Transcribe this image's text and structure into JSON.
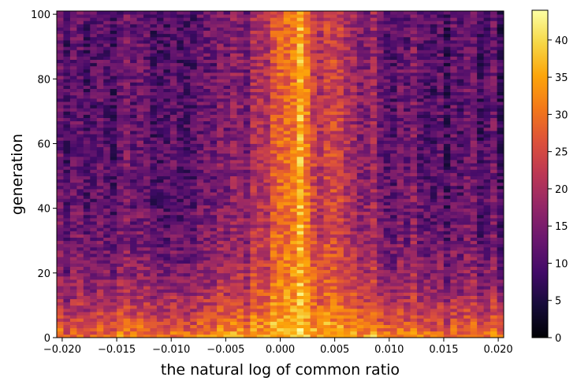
{
  "chart_data": {
    "type": "heatmap",
    "title": "",
    "xlabel": "the natural log of common ratio",
    "ylabel": "generation",
    "xlim": [
      -0.0205,
      0.0205
    ],
    "ylim": [
      0,
      101
    ],
    "x_ticks": [
      "−0.020",
      "−0.015",
      "−0.010",
      "−0.005",
      "0.000",
      "0.005",
      "0.010",
      "0.015",
      "0.020"
    ],
    "x_tick_values": [
      -0.02,
      -0.015,
      -0.01,
      -0.005,
      0.0,
      0.005,
      0.01,
      0.015,
      0.02
    ],
    "y_ticks": [
      "0",
      "20",
      "40",
      "60",
      "80",
      "100"
    ],
    "y_tick_values": [
      0,
      20,
      40,
      60,
      80,
      100
    ],
    "colormap": "inferno",
    "colorbar": {
      "range": [
        0,
        44
      ],
      "ticks": [
        "0",
        "5",
        "10",
        "15",
        "20",
        "25",
        "30",
        "35",
        "40"
      ],
      "tick_values": [
        0,
        5,
        10,
        15,
        20,
        25,
        30,
        35,
        40
      ]
    },
    "x_bins": 67,
    "y_bins": 101,
    "values_description_free": true,
    "profile": {
      "columns_x": [
        -0.02,
        -0.019,
        -0.018,
        -0.017,
        -0.016,
        -0.015,
        -0.014,
        -0.013,
        -0.012,
        -0.011,
        -0.01,
        -0.009,
        -0.008,
        -0.007,
        -0.006,
        -0.005,
        -0.004,
        -0.003,
        -0.002,
        -0.001,
        0.0,
        0.001,
        0.002,
        0.003,
        0.004,
        0.005,
        0.006,
        0.007,
        0.008,
        0.009,
        0.01,
        0.011,
        0.012,
        0.013,
        0.014,
        0.015,
        0.016,
        0.017,
        0.018,
        0.019,
        0.02
      ],
      "base_level_top": [
        12,
        12,
        11,
        11,
        12,
        11,
        12,
        11,
        12,
        12,
        13,
        12,
        13,
        13,
        14,
        14,
        15,
        16,
        20,
        22,
        30,
        28,
        38,
        25,
        20,
        27,
        22,
        18,
        16,
        15,
        14,
        13,
        13,
        12,
        12,
        11,
        12,
        11,
        11,
        12,
        11
      ],
      "base_level_bottom": [
        30,
        28,
        30,
        29,
        31,
        33,
        30,
        31,
        32,
        33,
        32,
        33,
        32,
        33,
        34,
        34,
        34,
        35,
        36,
        38,
        39,
        38,
        40,
        38,
        37,
        38,
        37,
        36,
        35,
        34,
        34,
        33,
        32,
        32,
        31,
        31,
        30,
        29,
        30,
        31,
        33
      ]
    }
  }
}
